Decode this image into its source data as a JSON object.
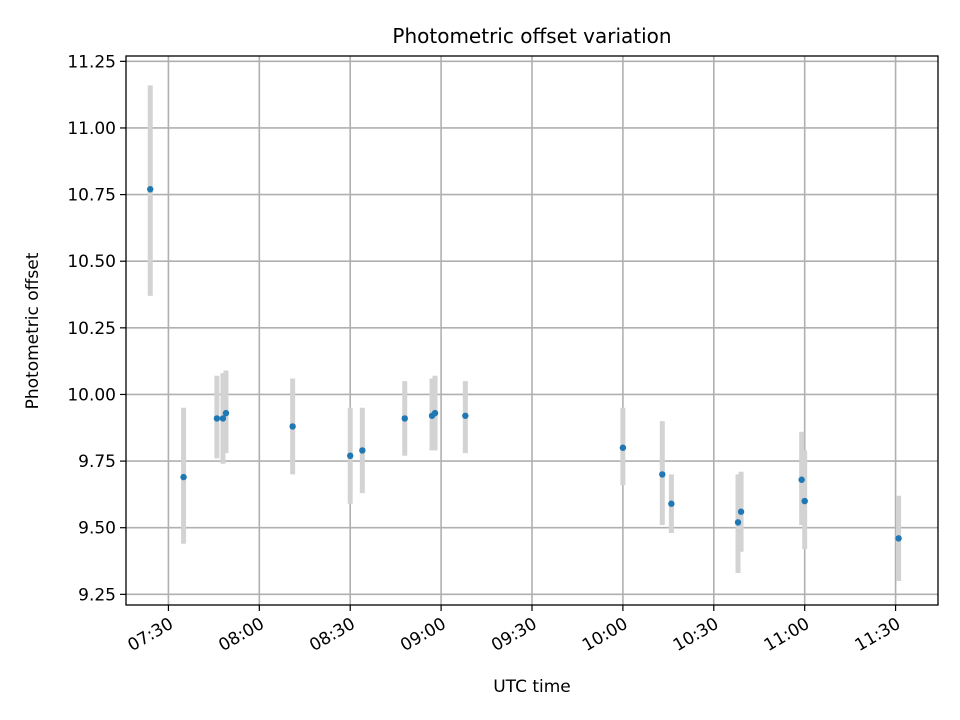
{
  "chart_data": {
    "type": "scatter",
    "title": "Photometric offset variation",
    "xlabel": "UTC time",
    "ylabel": "Photometric offset",
    "xlim": [
      "07:16",
      "11:44"
    ],
    "ylim": [
      9.21,
      11.27
    ],
    "x_ticks": [
      "07:30",
      "08:00",
      "08:30",
      "09:00",
      "09:30",
      "10:00",
      "10:30",
      "11:00",
      "11:30"
    ],
    "y_ticks": [
      "9.25",
      "9.50",
      "9.75",
      "10.00",
      "10.25",
      "10.50",
      "10.75",
      "11.00",
      "11.25"
    ],
    "grid": true,
    "marker_color": "#1f77b4",
    "errorbar_color": "#d3d3d3",
    "points": [
      {
        "x": "07:24",
        "y": 10.77,
        "ylow": 10.37,
        "yhigh": 11.16
      },
      {
        "x": "07:35",
        "y": 9.69,
        "ylow": 9.44,
        "yhigh": 9.95
      },
      {
        "x": "07:46",
        "y": 9.91,
        "ylow": 9.76,
        "yhigh": 10.07
      },
      {
        "x": "07:48",
        "y": 9.91,
        "ylow": 9.74,
        "yhigh": 10.08
      },
      {
        "x": "07:49",
        "y": 9.93,
        "ylow": 9.78,
        "yhigh": 10.09
      },
      {
        "x": "08:11",
        "y": 9.88,
        "ylow": 9.7,
        "yhigh": 10.06
      },
      {
        "x": "08:30",
        "y": 9.77,
        "ylow": 9.59,
        "yhigh": 9.95
      },
      {
        "x": "08:34",
        "y": 9.79,
        "ylow": 9.63,
        "yhigh": 9.95
      },
      {
        "x": "08:48",
        "y": 9.91,
        "ylow": 9.77,
        "yhigh": 10.05
      },
      {
        "x": "08:57",
        "y": 9.92,
        "ylow": 9.79,
        "yhigh": 10.06
      },
      {
        "x": "08:58",
        "y": 9.93,
        "ylow": 9.79,
        "yhigh": 10.07
      },
      {
        "x": "09:08",
        "y": 9.92,
        "ylow": 9.78,
        "yhigh": 10.05
      },
      {
        "x": "10:00",
        "y": 9.8,
        "ylow": 9.66,
        "yhigh": 9.95
      },
      {
        "x": "10:13",
        "y": 9.7,
        "ylow": 9.51,
        "yhigh": 9.9
      },
      {
        "x": "10:16",
        "y": 9.59,
        "ylow": 9.48,
        "yhigh": 9.7
      },
      {
        "x": "10:38",
        "y": 9.52,
        "ylow": 9.33,
        "yhigh": 9.7
      },
      {
        "x": "10:39",
        "y": 9.56,
        "ylow": 9.41,
        "yhigh": 9.71
      },
      {
        "x": "10:59",
        "y": 9.68,
        "ylow": 9.51,
        "yhigh": 9.86
      },
      {
        "x": "11:00",
        "y": 9.6,
        "ylow": 9.42,
        "yhigh": 9.79
      },
      {
        "x": "11:31",
        "y": 9.46,
        "ylow": 9.3,
        "yhigh": 9.62
      }
    ]
  }
}
